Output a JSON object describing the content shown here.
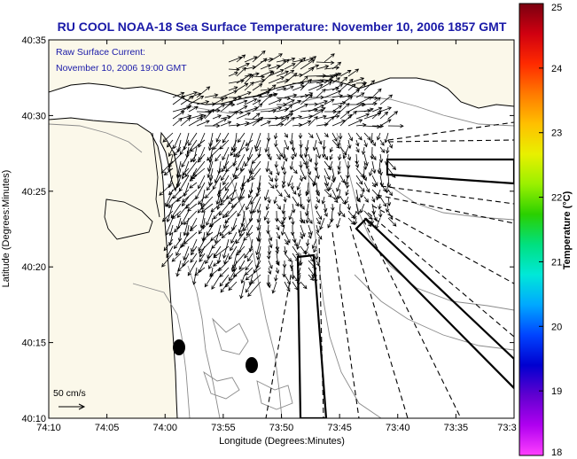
{
  "title": "RU COOL  NOAA-18  Sea Surface Temperature:  November 10, 2006 1857 GMT",
  "annotation": {
    "line1": "Raw Surface Current:",
    "line2": "November 10, 2006 19:00 GMT"
  },
  "scale_label": "50 cm/s",
  "x_axis": {
    "label": "Longitude (Degrees:Minutes)",
    "ticks": [
      "74:10",
      "74:05",
      "74:00",
      "73:55",
      "73:50",
      "73:45",
      "73:40",
      "73:35",
      "73:3"
    ]
  },
  "y_axis": {
    "label": "Latitude (Degrees:Minutes)",
    "ticks": [
      "40:35",
      "40:30",
      "40:25",
      "40:20",
      "40:15",
      "40:10"
    ]
  },
  "colorbar": {
    "label": "Temperature (°C)",
    "ticks": [
      "25",
      "24",
      "23",
      "22",
      "21",
      "20",
      "19",
      "18"
    ],
    "colors": [
      "#7a0010",
      "#d00010",
      "#ff2a00",
      "#ff7a00",
      "#ffc000",
      "#e8f000",
      "#9af000",
      "#2ad000",
      "#00e080",
      "#00e8d8",
      "#00a8ff",
      "#0044ff",
      "#0000d0",
      "#6000d0",
      "#b000f0",
      "#ff40ff"
    ]
  },
  "colors": {
    "land": "#fbf8ea",
    "sea": "#ffffff",
    "text": "#1a1aa8"
  }
}
